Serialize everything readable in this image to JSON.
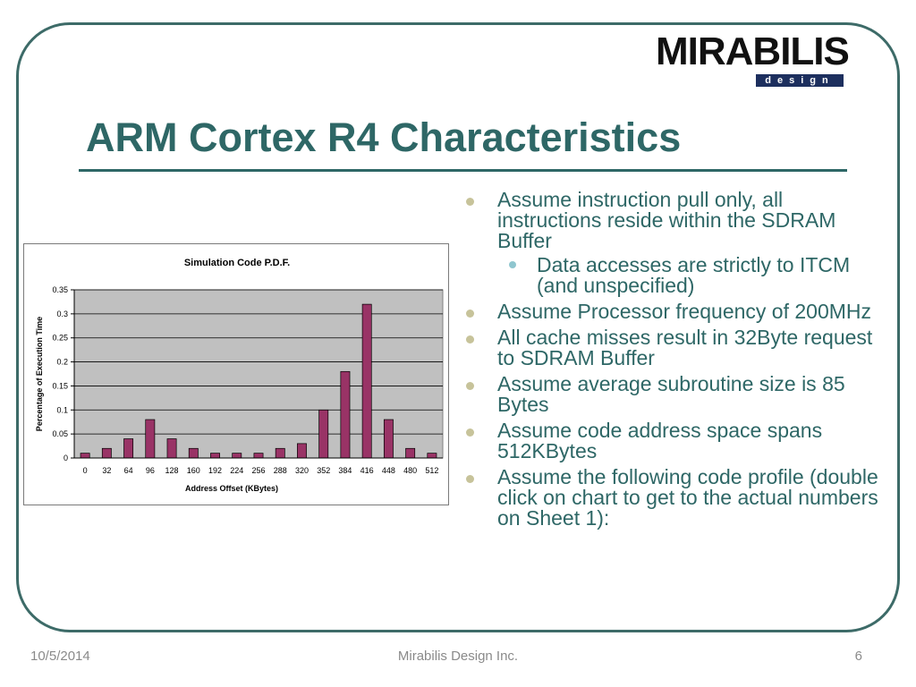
{
  "logo": {
    "word": "MIRABILIS",
    "sub": "design"
  },
  "slide": {
    "title": "ARM Cortex R4 Characteristics"
  },
  "bullets": [
    {
      "text": "Assume instruction pull only, all instructions reside within the SDRAM Buffer"
    },
    {
      "text": "Data accesses are strictly to ITCM (and unspecified)",
      "sub": true
    },
    {
      "text": "Assume Processor frequency of 200MHz"
    },
    {
      "text": "All cache misses result in 32Byte request to SDRAM Buffer"
    },
    {
      "text": "Assume average subroutine size is 85 Bytes"
    },
    {
      "text": "Assume code address space spans 512KBytes"
    },
    {
      "text": "Assume the following code profile (double click on chart to get to the actual numbers on Sheet 1):"
    }
  ],
  "footer": {
    "date": "10/5/2014",
    "company": "Mirabilis Design Inc.",
    "page": "6"
  },
  "colors": {
    "accent": "#2e6766",
    "bar": "#993366",
    "plot_bg": "#c0c0c0",
    "bullet": "#c7c39a",
    "sub_bullet": "#8fc6cf"
  },
  "chart_data": {
    "type": "bar",
    "title": "Simulation Code P.D.F.",
    "xlabel": "Address Offset (KBytes)",
    "ylabel": "Percentage of Execution Time",
    "categories": [
      "0",
      "32",
      "64",
      "96",
      "128",
      "160",
      "192",
      "224",
      "256",
      "288",
      "320",
      "352",
      "384",
      "416",
      "448",
      "480",
      "512"
    ],
    "values": [
      0.01,
      0.02,
      0.04,
      0.08,
      0.04,
      0.02,
      0.01,
      0.01,
      0.01,
      0.02,
      0.03,
      0.1,
      0.18,
      0.32,
      0.08,
      0.02,
      0.01
    ],
    "ylim": [
      0,
      0.35
    ],
    "yticks": [
      "0",
      "0.05",
      "0.1",
      "0.15",
      "0.2",
      "0.25",
      "0.3",
      "0.35"
    ],
    "grid": true,
    "legend": "none"
  }
}
